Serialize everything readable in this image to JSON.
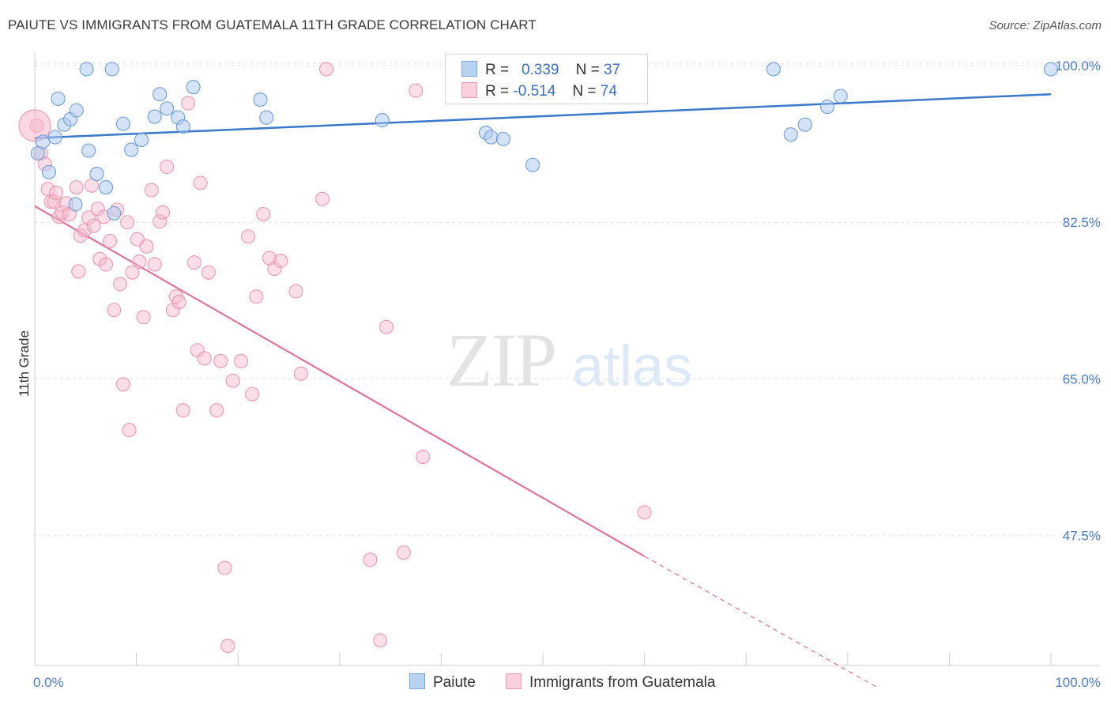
{
  "title": "PAIUTE VS IMMIGRANTS FROM GUATEMALA 11TH GRADE CORRELATION CHART",
  "source": "Source: ZipAtlas.com",
  "watermark": {
    "zip": "ZIP",
    "atlas": "atlas"
  },
  "legend": {
    "r_label": "R =",
    "n_label": "N =",
    "paiute": {
      "r": "0.339",
      "n": "37"
    },
    "guatemala": {
      "r": "-0.514",
      "n": "74"
    }
  },
  "bottom_legend": {
    "paiute": "Paiute",
    "guatemala": "Immigrants from Guatemala"
  },
  "chart_data": {
    "type": "scatter",
    "title": "PAIUTE VS IMMIGRANTS FROM GUATEMALA 11TH GRADE CORRELATION CHART",
    "xlabel": "",
    "ylabel": "11th Grade",
    "xlim": [
      0,
      100
    ],
    "ylim": [
      33,
      101.5
    ],
    "x_tick_labels": [
      "0.0%",
      "100.0%"
    ],
    "y_ticks": [
      47.5,
      65.0,
      82.5,
      100.0
    ],
    "y_tick_labels": [
      "47.5%",
      "65.0%",
      "82.5%",
      "100.0%"
    ],
    "grid": true,
    "colors": {
      "paiute": "#a9c7ef",
      "paiute_line": "#3a78c8",
      "guatemala": "#f7b6c9",
      "guatemala_line": "#e0739a"
    },
    "series": [
      {
        "name": "Paiute",
        "trend": {
          "x0": 0,
          "y0": 91.9,
          "x1": 100,
          "y1": 96.8
        },
        "points": [
          [
            0.3,
            90.2
          ],
          [
            0.8,
            91.5
          ],
          [
            1.4,
            88.1
          ],
          [
            2.0,
            92.0
          ],
          [
            2.3,
            96.3
          ],
          [
            2.9,
            93.4
          ],
          [
            3.5,
            94.0
          ],
          [
            4.1,
            95.0
          ],
          [
            4.0,
            84.5
          ],
          [
            5.3,
            90.5
          ],
          [
            5.1,
            99.6
          ],
          [
            6.1,
            87.9
          ],
          [
            7.0,
            86.4
          ],
          [
            7.8,
            83.5
          ],
          [
            7.6,
            99.6
          ],
          [
            8.7,
            93.5
          ],
          [
            9.5,
            90.6
          ],
          [
            10.5,
            91.7
          ],
          [
            11.8,
            94.3
          ],
          [
            12.3,
            96.8
          ],
          [
            13.0,
            95.2
          ],
          [
            14.1,
            94.2
          ],
          [
            14.6,
            93.2
          ],
          [
            15.6,
            97.6
          ],
          [
            22.2,
            96.2
          ],
          [
            22.8,
            94.2
          ],
          [
            34.2,
            93.9
          ],
          [
            44.4,
            92.5
          ],
          [
            44.9,
            92.0
          ],
          [
            46.1,
            91.8
          ],
          [
            49.0,
            88.9
          ],
          [
            72.7,
            99.6
          ],
          [
            74.4,
            92.3
          ],
          [
            75.8,
            93.4
          ],
          [
            78.0,
            95.4
          ],
          [
            79.3,
            96.6
          ],
          [
            100.0,
            99.6
          ]
        ]
      },
      {
        "name": "Immigrants from Guatemala",
        "trend": {
          "x0": 0,
          "y0": 84.3,
          "x1": 60,
          "y1": 45.2,
          "dash_to_x": 83,
          "dash_to_y": 30.5
        },
        "points": [
          [
            0.2,
            93.3
          ],
          [
            0.6,
            90.2
          ],
          [
            1.0,
            89.0
          ],
          [
            1.3,
            86.2
          ],
          [
            1.6,
            84.8
          ],
          [
            1.9,
            84.8
          ],
          [
            2.1,
            85.8
          ],
          [
            2.4,
            83.1
          ],
          [
            2.7,
            83.6
          ],
          [
            3.1,
            84.6
          ],
          [
            3.4,
            83.4
          ],
          [
            4.1,
            86.4
          ],
          [
            4.3,
            77.0
          ],
          [
            4.5,
            81.0
          ],
          [
            4.9,
            81.6
          ],
          [
            5.3,
            83.0
          ],
          [
            5.6,
            86.6
          ],
          [
            5.8,
            82.1
          ],
          [
            6.2,
            84.0
          ],
          [
            6.4,
            78.4
          ],
          [
            6.8,
            83.1
          ],
          [
            7.0,
            77.8
          ],
          [
            7.4,
            80.4
          ],
          [
            7.8,
            72.7
          ],
          [
            8.1,
            83.9
          ],
          [
            8.4,
            75.6
          ],
          [
            8.7,
            64.4
          ],
          [
            9.1,
            82.5
          ],
          [
            9.3,
            59.3
          ],
          [
            9.6,
            76.9
          ],
          [
            10.1,
            80.6
          ],
          [
            10.3,
            78.1
          ],
          [
            10.7,
            71.9
          ],
          [
            11.0,
            79.8
          ],
          [
            11.5,
            86.1
          ],
          [
            11.8,
            77.8
          ],
          [
            12.3,
            82.6
          ],
          [
            12.6,
            83.6
          ],
          [
            13.0,
            88.7
          ],
          [
            13.6,
            72.7
          ],
          [
            13.9,
            74.2
          ],
          [
            14.2,
            73.6
          ],
          [
            14.6,
            61.5
          ],
          [
            15.1,
            95.8
          ],
          [
            15.7,
            78.0
          ],
          [
            16.0,
            68.2
          ],
          [
            16.3,
            86.9
          ],
          [
            16.7,
            67.3
          ],
          [
            17.1,
            76.9
          ],
          [
            17.9,
            61.5
          ],
          [
            18.3,
            67.0
          ],
          [
            18.7,
            43.9
          ],
          [
            19.0,
            35.2
          ],
          [
            19.5,
            64.8
          ],
          [
            20.3,
            67.0
          ],
          [
            21.0,
            80.9
          ],
          [
            21.4,
            63.3
          ],
          [
            21.8,
            74.2
          ],
          [
            22.5,
            83.4
          ],
          [
            23.1,
            78.5
          ],
          [
            23.6,
            77.3
          ],
          [
            24.2,
            78.2
          ],
          [
            25.7,
            74.8
          ],
          [
            26.2,
            65.6
          ],
          [
            28.3,
            85.1
          ],
          [
            28.7,
            99.6
          ],
          [
            33.0,
            44.8
          ],
          [
            34.0,
            35.8
          ],
          [
            34.6,
            70.8
          ],
          [
            36.3,
            45.6
          ],
          [
            37.5,
            97.2
          ],
          [
            38.2,
            56.3
          ],
          [
            60.0,
            50.1
          ],
          [
            0.0,
            93.3
          ]
        ]
      }
    ]
  }
}
